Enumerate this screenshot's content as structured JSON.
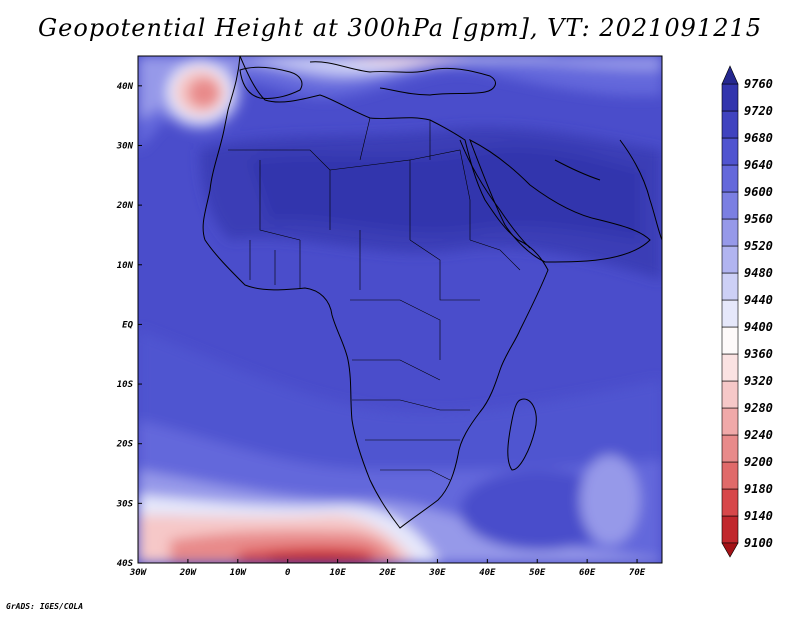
{
  "title": "Geopotential Height at 300hPa [gpm], VT: 2021091215",
  "footer": "GrADS: IGES/COLA",
  "map": {
    "projection": "lat-lon",
    "lon_range": [
      -30,
      75
    ],
    "lat_range": [
      -40,
      45
    ],
    "lon_ticks": [
      {
        "value": -30,
        "label": "30W"
      },
      {
        "value": -20,
        "label": "20W"
      },
      {
        "value": -10,
        "label": "10W"
      },
      {
        "value": 0,
        "label": "0"
      },
      {
        "value": 10,
        "label": "10E"
      },
      {
        "value": 20,
        "label": "20E"
      },
      {
        "value": 30,
        "label": "30E"
      },
      {
        "value": 40,
        "label": "40E"
      },
      {
        "value": 50,
        "label": "50E"
      },
      {
        "value": 60,
        "label": "60E"
      },
      {
        "value": 70,
        "label": "70E"
      }
    ],
    "lat_ticks": [
      {
        "value": 40,
        "label": "40N"
      },
      {
        "value": 30,
        "label": "30N"
      },
      {
        "value": 20,
        "label": "20N"
      },
      {
        "value": 10,
        "label": "10N"
      },
      {
        "value": 0,
        "label": "EQ"
      },
      {
        "value": -10,
        "label": "10S"
      },
      {
        "value": -20,
        "label": "20S"
      },
      {
        "value": -30,
        "label": "30S"
      },
      {
        "value": -40,
        "label": "40S"
      }
    ]
  },
  "colorbar": {
    "levels": [
      9100,
      9140,
      9180,
      9200,
      9240,
      9280,
      9320,
      9360,
      9400,
      9440,
      9480,
      9520,
      9560,
      9600,
      9640,
      9680,
      9720,
      9760
    ],
    "colors": [
      "#a31217",
      "#c1272d",
      "#d7474a",
      "#e06a6a",
      "#e88a8a",
      "#f0a9a9",
      "#f6c8c8",
      "#fbe2e2",
      "#fefafa",
      "#e6e8fb",
      "#cdd0f6",
      "#b1b4f0",
      "#9699e9",
      "#7b7fe2",
      "#6468db",
      "#5054d0",
      "#4043bf",
      "#3234ad",
      "#25278f"
    ]
  }
}
